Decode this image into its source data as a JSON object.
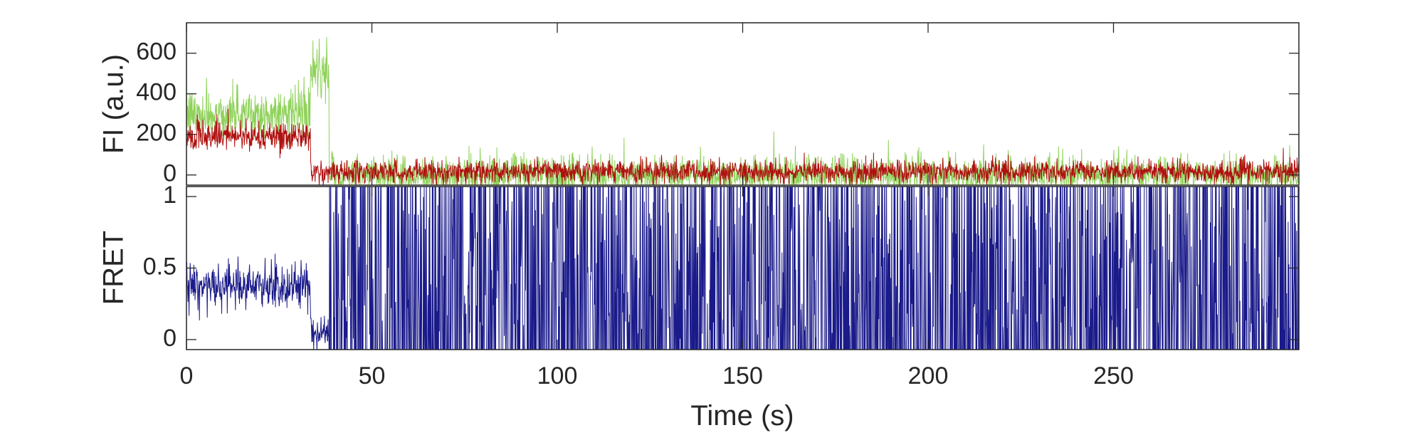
{
  "chart_data": [
    {
      "type": "line",
      "panel": "top",
      "ylabel": "FI (a.u.)",
      "xlim": [
        0,
        300
      ],
      "ylim": [
        -50,
        750
      ],
      "yticks": [
        0,
        200,
        400,
        600
      ],
      "ytick_labels": [
        "0",
        "200",
        "400",
        "600"
      ],
      "grid": false,
      "colors": {
        "donor": "#8fd15a",
        "acceptor": "#b01010"
      },
      "series": [
        {
          "key": "donor",
          "segments": [
            {
              "x": [
                0,
                33.5
              ],
              "level": 300,
              "noise": 60
            },
            {
              "x": [
                33.5,
                38.5
              ],
              "level": 500,
              "noise": 70
            },
            {
              "x": [
                38.5,
                300
              ],
              "level": 0,
              "noise": 45
            }
          ]
        },
        {
          "key": "acceptor",
          "segments": [
            {
              "x": [
                0,
                33.5
              ],
              "level": 190,
              "noise": 35
            },
            {
              "x": [
                33.5,
                300
              ],
              "level": 15,
              "noise": 28
            }
          ]
        }
      ]
    },
    {
      "type": "line",
      "panel": "bottom",
      "ylabel": "FRET",
      "xlabel": "Time (s)",
      "xlim": [
        0,
        300
      ],
      "ylim": [
        -0.07,
        1.07
      ],
      "yticks": [
        0,
        0.5,
        1
      ],
      "ytick_labels": [
        "0",
        "0.5",
        "1"
      ],
      "xticks": [
        0,
        50,
        100,
        150,
        200,
        250
      ],
      "xtick_labels": [
        "0",
        "50",
        "100",
        "150",
        "200",
        "250"
      ],
      "grid": false,
      "colors": {
        "fret": "#1a1a8a"
      },
      "series": [
        {
          "key": "fret",
          "segments": [
            {
              "x": [
                0,
                33.5
              ],
              "level": 0.38,
              "noise": 0.08
            },
            {
              "x": [
                33.5,
                38.5
              ],
              "level": 0.05,
              "noise": 0.05
            },
            {
              "x": [
                38.5,
                300
              ],
              "level": "random",
              "noise": 1.0
            }
          ]
        }
      ]
    }
  ]
}
